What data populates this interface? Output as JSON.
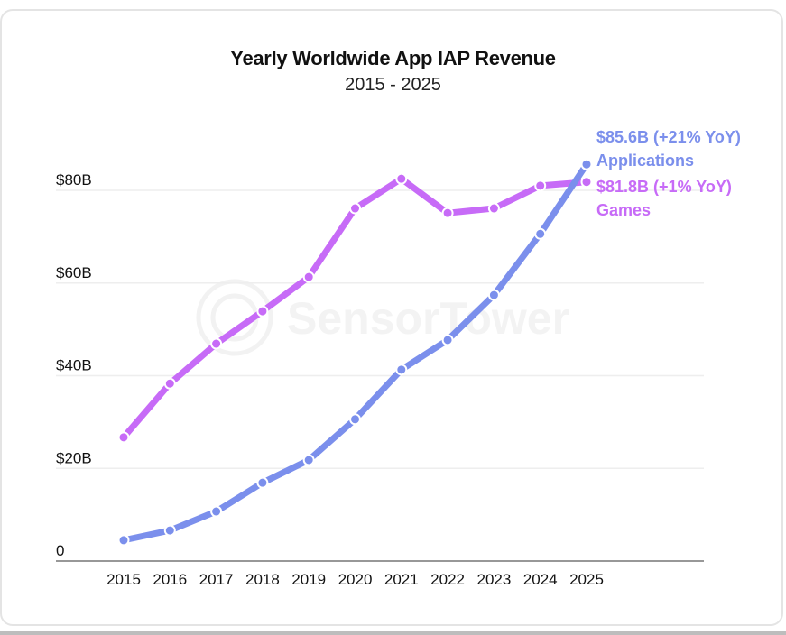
{
  "chart_data": {
    "type": "line",
    "title": "Yearly Worldwide App IAP Revenue",
    "subtitle": "2015 - 2025",
    "xlabel": "",
    "ylabel": "",
    "x": [
      "2015",
      "2016",
      "2017",
      "2018",
      "2019",
      "2020",
      "2021",
      "2022",
      "2023",
      "2024",
      "2025"
    ],
    "ylim": [
      0,
      90
    ],
    "yticks": [
      0,
      20,
      40,
      60,
      80
    ],
    "ytick_labels": [
      "0",
      "$20B",
      "$40B",
      "$60B",
      "$80B"
    ],
    "grid": true,
    "watermark": "SensorTower",
    "series": [
      {
        "name": "Games",
        "color": "#c76bf7",
        "values": [
          26.7,
          38.3,
          46.9,
          53.9,
          61.3,
          76.1,
          82.5,
          75.1,
          76.1,
          81.0,
          81.8
        ],
        "end_label_value": "$81.8B",
        "end_label_change": "(+1% YoY)",
        "end_label_name": "Games"
      },
      {
        "name": "Applications",
        "color": "#7b8fec",
        "values": [
          4.5,
          6.6,
          10.7,
          16.9,
          21.8,
          30.6,
          41.3,
          47.7,
          57.4,
          70.6,
          85.6
        ],
        "end_label_value": "$85.6B",
        "end_label_change": "(+21% YoY)",
        "end_label_name": "Applications"
      }
    ]
  }
}
